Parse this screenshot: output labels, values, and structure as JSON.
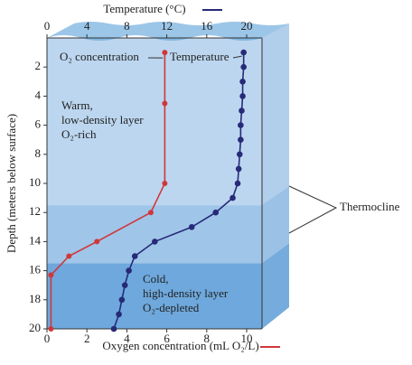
{
  "chart_data": {
    "type": "line",
    "x_label": "Oxygen concentration (mL O₂/L)",
    "x2_label": "Temperature (°C)",
    "y_label": "Depth (meters below surface)",
    "xlim": [
      0,
      10
    ],
    "xticks": [
      0,
      2,
      4,
      6,
      8,
      10
    ],
    "x2lim": [
      0,
      20
    ],
    "x2ticks": [
      0,
      4,
      8,
      12,
      16,
      20
    ],
    "ylim": [
      0,
      20
    ],
    "yticks": [
      2,
      4,
      6,
      8,
      10,
      12,
      14,
      16,
      18,
      20
    ],
    "y_inverted": true,
    "series": [
      {
        "name": "O₂ concentration",
        "color": "#d0373b",
        "axis": "x",
        "x": [
          5.9,
          5.9,
          5.9,
          5.2,
          2.5,
          1.1,
          0.2,
          0.2
        ],
        "y": [
          1,
          4.5,
          10,
          12,
          14,
          15,
          16.3,
          20
        ]
      },
      {
        "name": "Temperature",
        "color": "#262a78",
        "axis": "x2",
        "x": [
          19.7,
          19.7,
          19.6,
          19.6,
          19.5,
          19.4,
          19.4,
          19.3,
          19.2,
          19.1,
          18.6,
          16.9,
          14.5,
          10.8,
          8.8,
          8.2,
          7.8,
          7.5,
          7.2,
          6.7
        ],
        "y": [
          1,
          2,
          3,
          4,
          5,
          6,
          7,
          8,
          9,
          10,
          11,
          12,
          13,
          14,
          15,
          16,
          17,
          18,
          19,
          20
        ]
      }
    ],
    "layers": [
      {
        "lines": [
          "Warm,",
          "low-density layer",
          "O₂-rich"
        ],
        "from": 0,
        "to": 11.5,
        "color": "#bcd6ef"
      },
      {
        "lines": [],
        "from": 11.5,
        "to": 15.5,
        "color": "#9fc5e8"
      },
      {
        "lines": [
          "Cold,",
          "high-density layer",
          "O₂-depleted"
        ],
        "from": 15.5,
        "to": 20,
        "color": "#6ea8dc"
      }
    ],
    "thermocline_label": "Thermocline"
  }
}
